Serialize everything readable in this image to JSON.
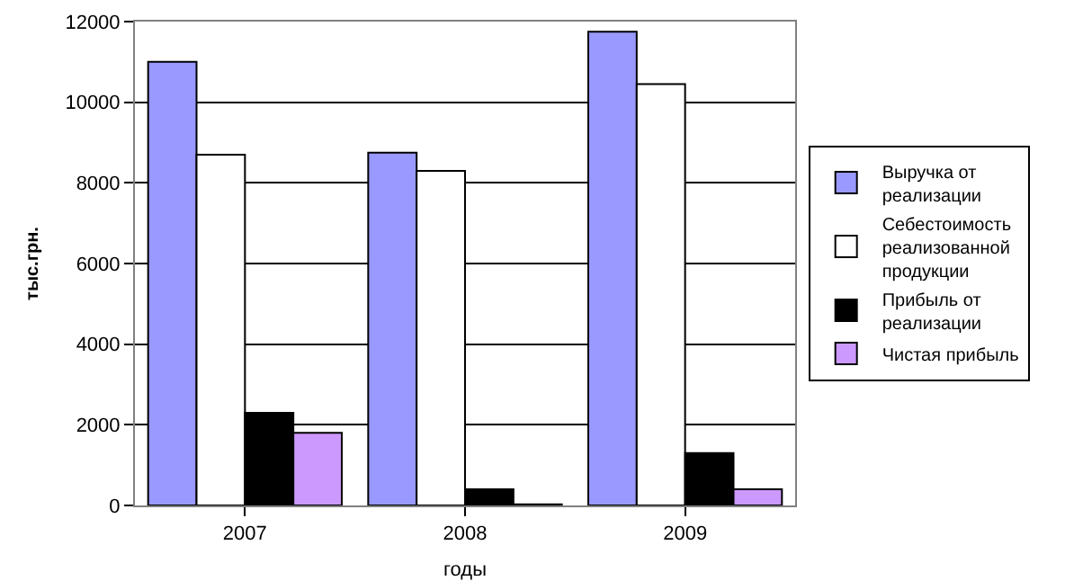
{
  "chart_data": {
    "type": "bar",
    "xlabel": "годы",
    "ylabel": "тыс.грн.",
    "categories": [
      "2007",
      "2008",
      "2009"
    ],
    "series": [
      {
        "name": "Выручка от реализации",
        "color": "#9999ff",
        "values": [
          11000,
          8750,
          11750
        ]
      },
      {
        "name": "Себестоимость реализованной продукции",
        "color": "#ffffff",
        "values": [
          8700,
          8300,
          10450
        ]
      },
      {
        "name": "Прибыль от реализации",
        "color": "#000000",
        "values": [
          2300,
          400,
          1300
        ]
      },
      {
        "name": "Чистая прибыль",
        "color": "#cc99ff",
        "values": [
          1800,
          30,
          400
        ]
      }
    ],
    "ylim": [
      0,
      12000
    ],
    "yticks": [
      0,
      2000,
      4000,
      6000,
      8000,
      10000,
      12000
    ],
    "grid": "y",
    "legend": "right"
  }
}
